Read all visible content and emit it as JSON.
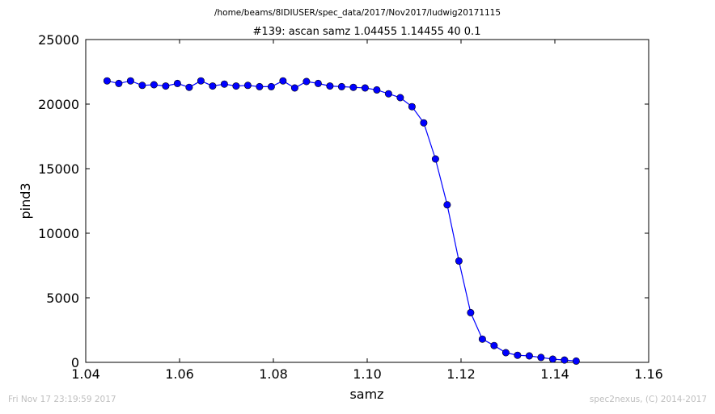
{
  "figure": {
    "suptitle": "/home/beams/8IDIUSER/spec_data/2017/Nov2017/ludwig20171115",
    "footer_left": "Fri Nov 17 23:19:59 2017",
    "footer_right": "spec2nexus, (C) 2014-2017"
  },
  "chart_data": {
    "type": "line",
    "title": "#139: ascan  samz 1.04455 1.14455  40 0.1",
    "xlabel": "samz",
    "ylabel": "pind3",
    "xlim": [
      1.04,
      1.16
    ],
    "ylim": [
      0,
      25000
    ],
    "xticks": [
      1.04,
      1.06,
      1.08,
      1.1,
      1.12,
      1.14,
      1.16
    ],
    "xtick_labels": [
      "1.04",
      "1.06",
      "1.08",
      "1.10",
      "1.12",
      "1.14",
      "1.16"
    ],
    "yticks": [
      0,
      5000,
      10000,
      15000,
      20000,
      25000
    ],
    "ytick_labels": [
      "0",
      "5000",
      "10000",
      "15000",
      "20000",
      "25000"
    ],
    "grid": false,
    "series": [
      {
        "color": "#0000ff",
        "marker": "circle",
        "x": [
          1.04455,
          1.04705,
          1.04955,
          1.05205,
          1.05455,
          1.05705,
          1.05955,
          1.06205,
          1.06455,
          1.06705,
          1.06955,
          1.07205,
          1.07455,
          1.07705,
          1.07955,
          1.08205,
          1.08455,
          1.08705,
          1.08955,
          1.09205,
          1.09455,
          1.09705,
          1.09955,
          1.10205,
          1.10455,
          1.10705,
          1.10955,
          1.11205,
          1.11455,
          1.11705,
          1.11955,
          1.12205,
          1.12455,
          1.12705,
          1.12955,
          1.13205,
          1.13455,
          1.13705,
          1.13955,
          1.14205,
          1.14455
        ],
        "y": [
          21800,
          21600,
          21800,
          21450,
          21500,
          21400,
          21600,
          21300,
          21800,
          21400,
          21550,
          21400,
          21450,
          21350,
          21350,
          21800,
          21250,
          21750,
          21600,
          21400,
          21350,
          21300,
          21250,
          21100,
          20800,
          20500,
          19800,
          18550,
          15750,
          12200,
          7850,
          3850,
          1800,
          1300,
          750,
          550,
          500,
          380,
          250,
          180,
          100
        ]
      }
    ]
  }
}
